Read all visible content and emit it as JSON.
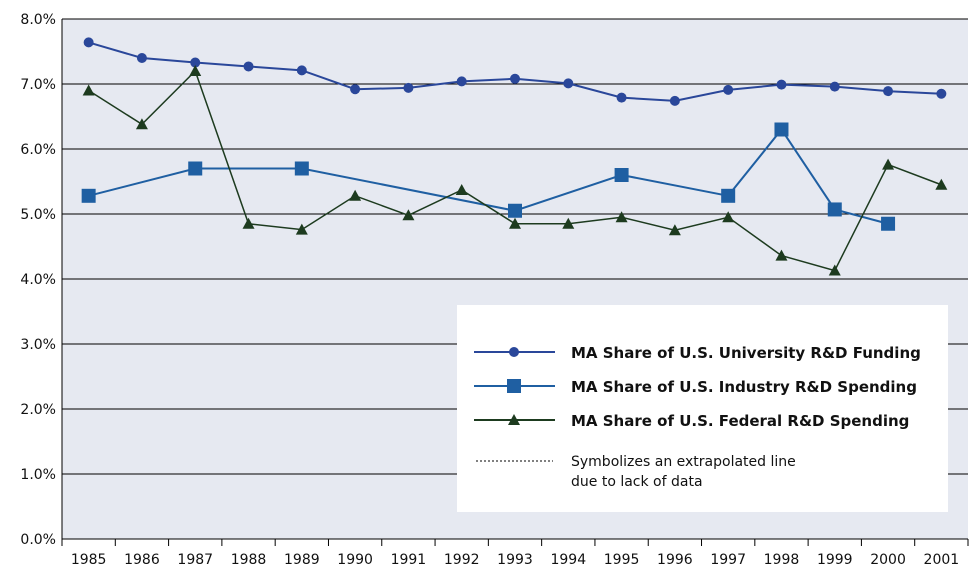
{
  "chart_data": {
    "type": "line",
    "categories": [
      "1985",
      "1986",
      "1987",
      "1988",
      "1989",
      "1990",
      "1991",
      "1992",
      "1993",
      "1994",
      "1995",
      "1996",
      "1997",
      "1998",
      "1999",
      "2000",
      "2001"
    ],
    "ylim": [
      0,
      8
    ],
    "yticks": [
      {
        "value": 0,
        "label": "0.0%"
      },
      {
        "value": 1,
        "label": "1.0%"
      },
      {
        "value": 2,
        "label": "2.0%"
      },
      {
        "value": 3,
        "label": "3.0%"
      },
      {
        "value": 4,
        "label": "4.0%"
      },
      {
        "value": 5,
        "label": "5.0%"
      },
      {
        "value": 6,
        "label": "6.0%"
      },
      {
        "value": 7,
        "label": "7.0%"
      },
      {
        "value": 8,
        "label": "8.0%"
      }
    ],
    "grid": true,
    "legend": {
      "position": "lower right",
      "note": [
        "Symbolizes an extrapolated line",
        "due to lack of data"
      ]
    },
    "series": [
      {
        "name": "MA Share of U.S. University R&D Funding",
        "color": "#2a479a",
        "marker": "circle",
        "values": [
          7.64,
          7.4,
          7.33,
          7.27,
          7.21,
          6.92,
          6.94,
          7.04,
          7.08,
          7.01,
          6.79,
          6.74,
          6.91,
          6.99,
          6.96,
          6.89,
          6.85
        ]
      },
      {
        "name": "MA Share of U.S. Industry R&D Spending",
        "color": "#1f5fa2",
        "marker": "square",
        "x": [
          "1985",
          "1987",
          "1989",
          "1993",
          "1995",
          "1997",
          "1998",
          "1999",
          "2000"
        ],
        "values": [
          5.28,
          5.7,
          5.7,
          5.05,
          5.6,
          5.28,
          6.3,
          5.07,
          4.85
        ]
      },
      {
        "name": "MA Share of U.S. Federal R&D Spending",
        "color": "#1d3b1f",
        "marker": "triangle",
        "values": [
          6.9,
          6.38,
          7.2,
          4.85,
          4.76,
          5.28,
          4.98,
          5.37,
          4.85,
          4.85,
          4.95,
          4.75,
          4.95,
          4.36,
          4.13,
          5.76,
          5.45
        ]
      }
    ]
  }
}
